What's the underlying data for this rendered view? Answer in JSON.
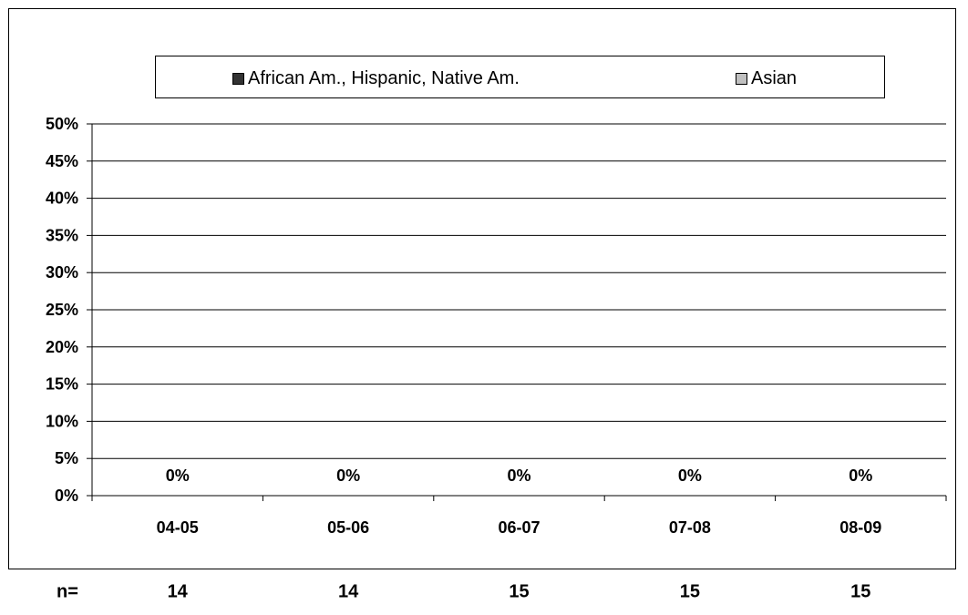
{
  "chart_data": {
    "type": "bar",
    "categories": [
      "04-05",
      "05-06",
      "06-07",
      "07-08",
      "08-09"
    ],
    "series": [
      {
        "name": "African Am., Hispanic, Native Am.",
        "color": "#333333",
        "values": [
          0,
          0,
          0,
          0,
          0
        ]
      },
      {
        "name": "Asian",
        "color": "#c0c0c0",
        "values": [
          0,
          0,
          0,
          0,
          0
        ]
      }
    ],
    "data_labels": [
      "0%",
      "0%",
      "0%",
      "0%",
      "0%"
    ],
    "y_ticks": [
      "0%",
      "5%",
      "10%",
      "15%",
      "20%",
      "25%",
      "30%",
      "35%",
      "40%",
      "45%",
      "50%"
    ],
    "ylim": [
      0,
      50
    ],
    "y_unit": "%",
    "grid": true,
    "legend_position": "top",
    "title": "",
    "xlabel": "",
    "ylabel": ""
  },
  "n_row": {
    "prefix": "n=",
    "values": [
      "14",
      "14",
      "15",
      "15",
      "15"
    ]
  }
}
